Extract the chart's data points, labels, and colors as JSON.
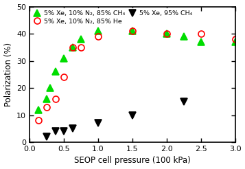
{
  "series1": {
    "label": "5% Xe, 10% N₂, 85% CH₄",
    "x": [
      0.13,
      0.25,
      0.3,
      0.38,
      0.5,
      0.63,
      0.75,
      1.0,
      1.5,
      2.0,
      2.25,
      2.5,
      3.0
    ],
    "y": [
      12,
      16,
      20,
      26,
      31,
      35,
      38,
      41,
      41,
      40,
      39,
      37,
      37
    ],
    "color": "#00dd00",
    "marker": "^",
    "markersize": 6.5,
    "fillstyle": "full"
  },
  "series2": {
    "label": "5% Xe, 10% N₂, 85% He",
    "x": [
      0.13,
      0.25,
      0.38,
      0.5,
      0.63,
      0.75,
      1.0,
      1.5,
      2.0,
      2.5,
      3.0
    ],
    "y": [
      8,
      13,
      16,
      24,
      35,
      35,
      39,
      41,
      40,
      40,
      38
    ],
    "color": "#ff0000",
    "marker": "o",
    "markersize": 6.5,
    "fillstyle": "none"
  },
  "series3": {
    "label": "5% Xe, 95% CH₄",
    "x": [
      0.25,
      0.38,
      0.5,
      0.63,
      1.0,
      1.5,
      2.25
    ],
    "y": [
      2,
      4,
      4,
      5,
      7,
      10,
      15
    ],
    "color": "#000000",
    "marker": "v",
    "markersize": 6.5,
    "fillstyle": "full"
  },
  "xlabel": "SEOP cell pressure (100 kPa)",
  "ylabel": "Polarization (%)",
  "xlim": [
    0.0,
    3.0
  ],
  "ylim": [
    0,
    50
  ],
  "xticks": [
    0.0,
    0.5,
    1.0,
    1.5,
    2.0,
    2.5,
    3.0
  ],
  "yticks": [
    0,
    10,
    20,
    30,
    40,
    50
  ],
  "legend_fontsize": 6.8,
  "axis_fontsize": 8.5,
  "tick_fontsize": 8
}
